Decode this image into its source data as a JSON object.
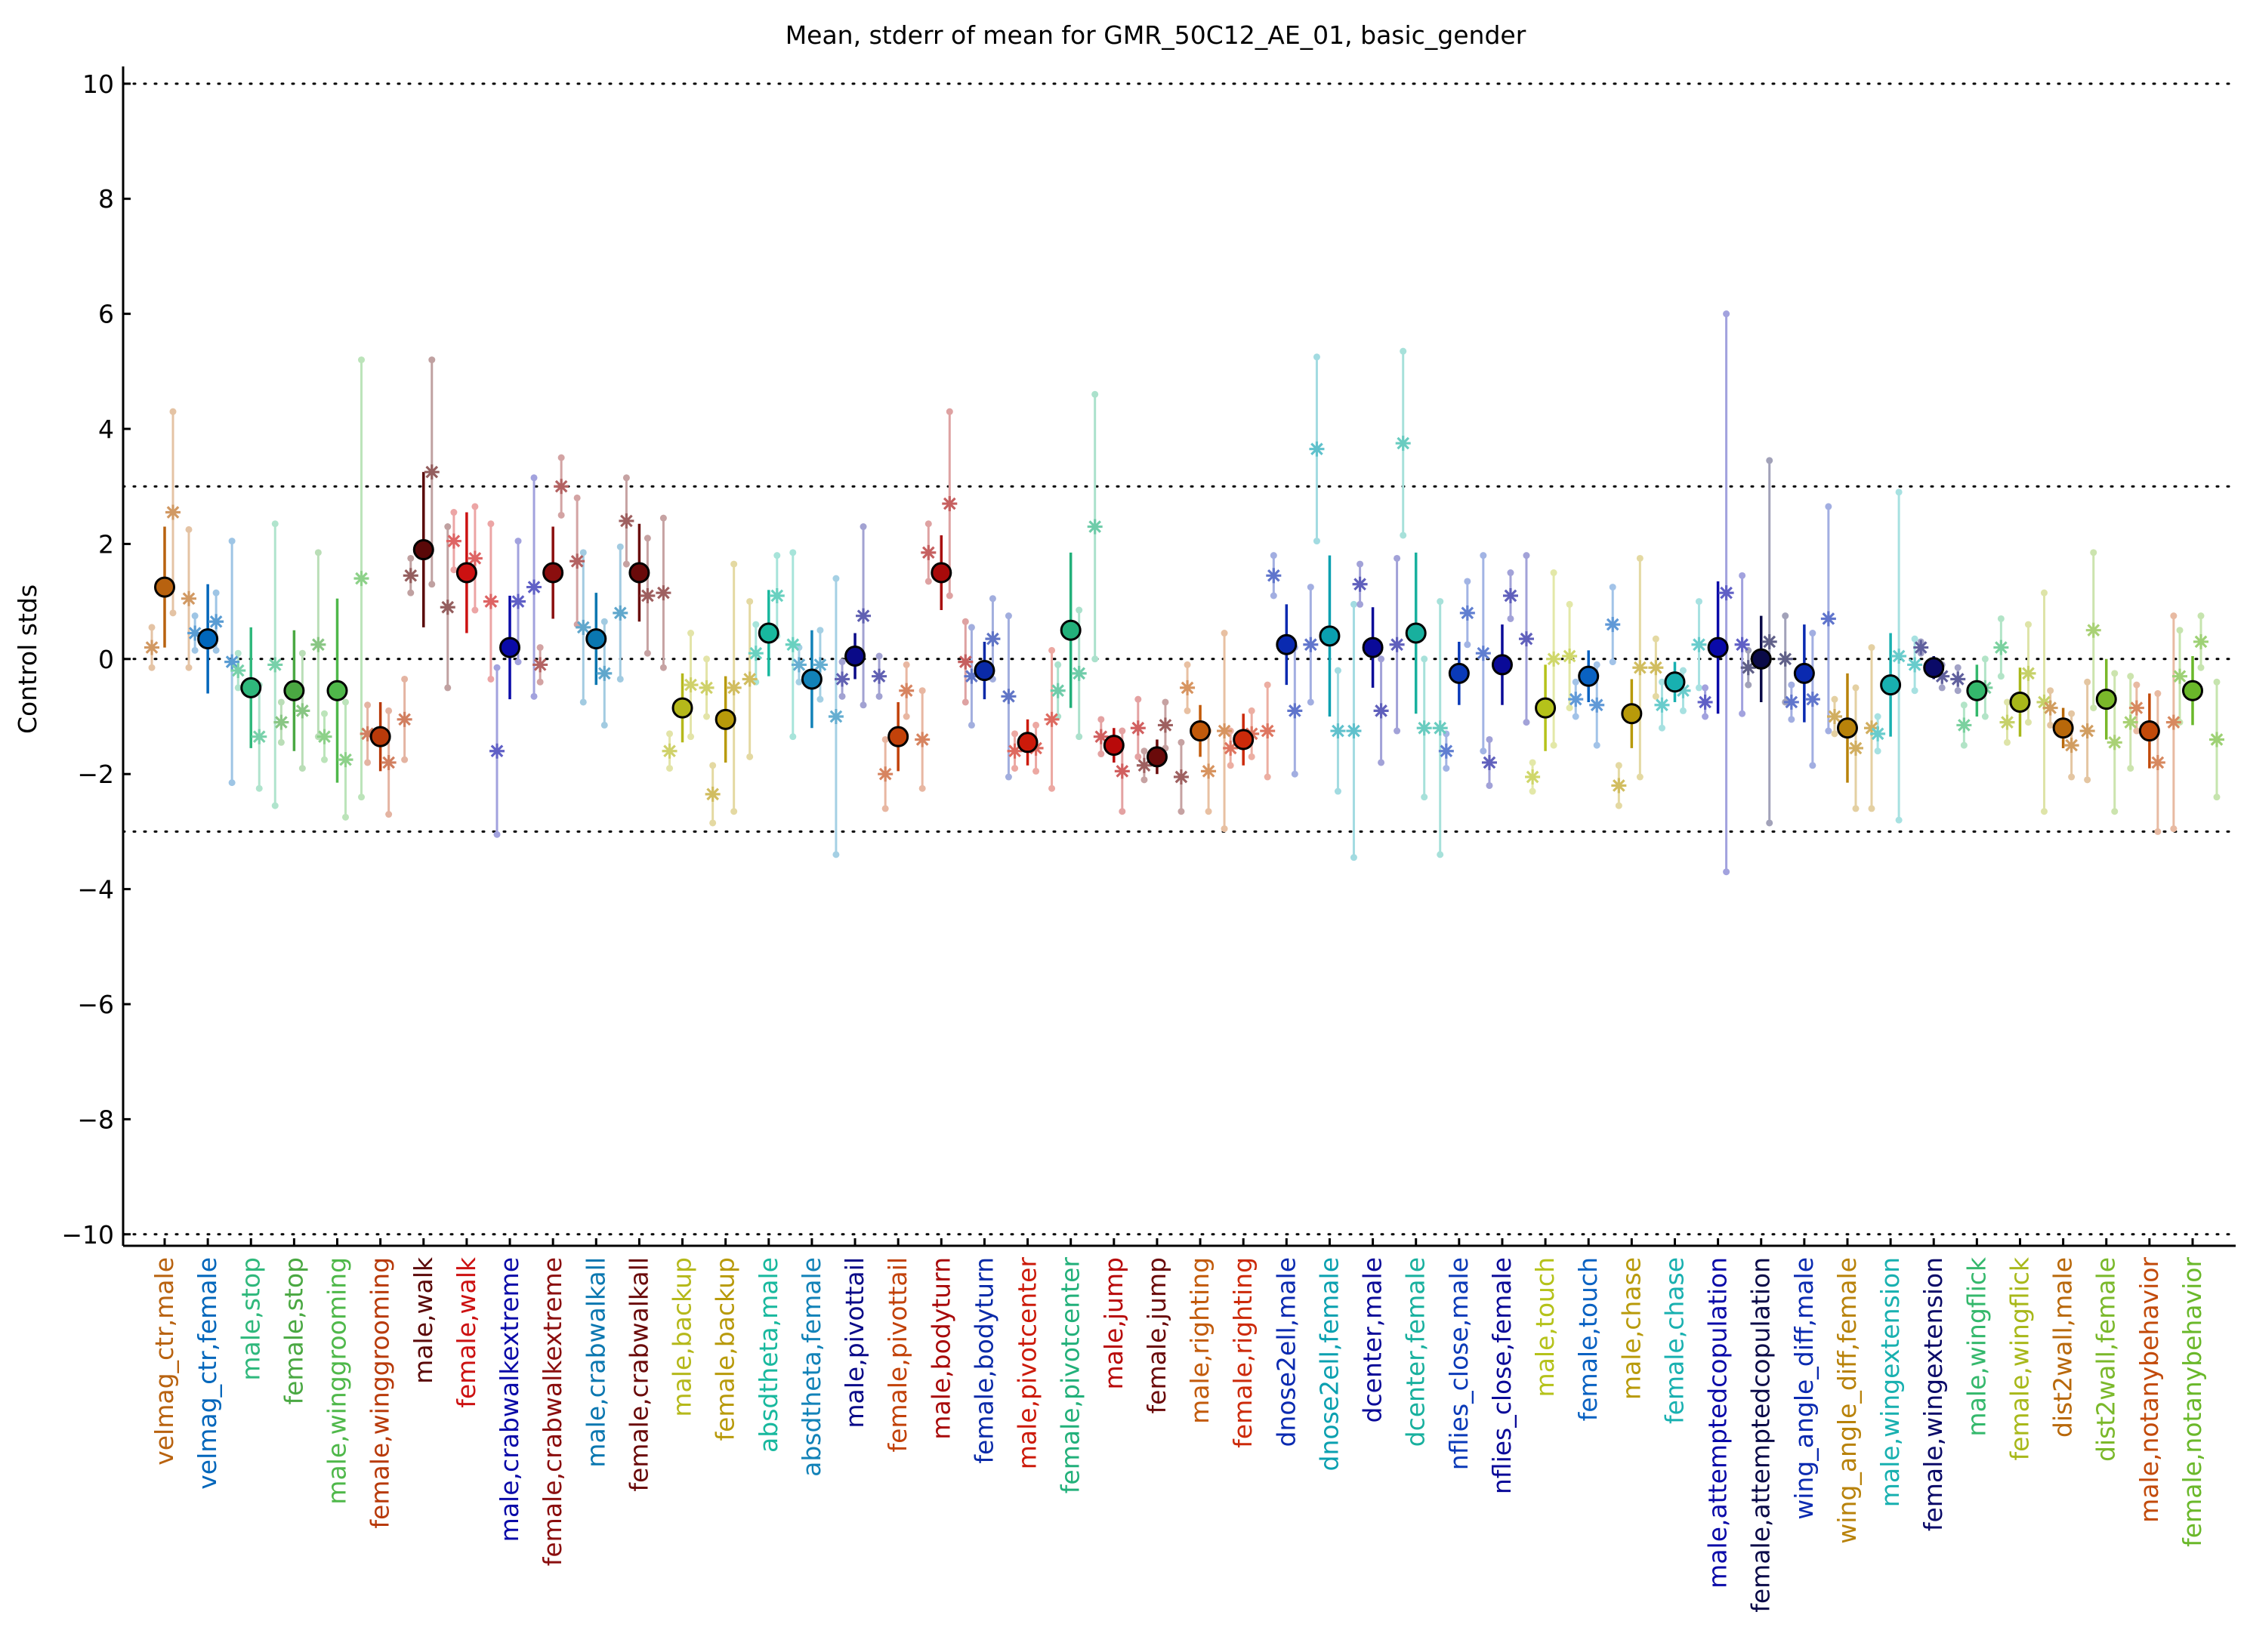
{
  "chart_data": {
    "type": "scatter",
    "title": "Mean, stderr of mean for GMR_50C12_AE_01, basic_gender",
    "ylabel": "Control stds",
    "xlabel": "",
    "ylim": [
      -10.2,
      10.3
    ],
    "yticks": [
      10,
      8,
      6,
      4,
      2,
      0,
      -2,
      -4,
      -6,
      -8,
      -10
    ],
    "ytick_labels": [
      "10",
      "8",
      "6",
      "4",
      "2",
      "0",
      "−2",
      "−4",
      "−6",
      "−8",
      "−10"
    ],
    "reference_lines": [
      10,
      3,
      0,
      -3,
      -10
    ],
    "reference_line_style": "dotted",
    "grid": false,
    "legend": "none",
    "categories": [
      {
        "label": "velmag_ctr,male",
        "color": "#b8620f",
        "mean": 1.25,
        "sem": 1.05,
        "ind": [
          0.2,
          2.55,
          1.05
        ],
        "ind_err": [
          0.35,
          1.75,
          1.2
        ]
      },
      {
        "label": "velmag_ctr,female",
        "color": "#0066bb",
        "mean": 0.35,
        "sem": 0.95,
        "ind": [
          0.45,
          0.65,
          -0.05
        ],
        "ind_err": [
          0.3,
          0.5,
          2.1
        ]
      },
      {
        "label": "male,stop",
        "color": "#2fb87c",
        "mean": -0.5,
        "sem": 1.05,
        "ind": [
          -0.2,
          -1.35,
          -0.1
        ],
        "ind_err": [
          0.3,
          0.9,
          2.45
        ]
      },
      {
        "label": "female,stop",
        "color": "#4aa842",
        "mean": -0.55,
        "sem": 1.05,
        "ind": [
          -1.1,
          -0.9,
          0.25
        ],
        "ind_err": [
          0.35,
          1.0,
          1.6
        ]
      },
      {
        "label": "male,winggrooming",
        "color": "#4fb84a",
        "mean": -0.55,
        "sem": 1.6,
        "ind": [
          -1.35,
          -1.75,
          1.4
        ],
        "ind_err": [
          0.4,
          1.0,
          3.8
        ]
      },
      {
        "label": "female,winggrooming",
        "color": "#b83a0a",
        "mean": -1.35,
        "sem": 0.6,
        "ind": [
          -1.3,
          -1.8,
          -1.05
        ],
        "ind_err": [
          0.5,
          0.9,
          0.7
        ]
      },
      {
        "label": "male,walk",
        "color": "#5a0808",
        "mean": 1.9,
        "sem": 1.35,
        "ind": [
          1.45,
          3.25,
          0.9
        ],
        "ind_err": [
          0.3,
          1.95,
          1.4
        ]
      },
      {
        "label": "female,walk",
        "color": "#cc1111",
        "mean": 1.5,
        "sem": 1.05,
        "ind": [
          2.05,
          1.75,
          1.0
        ],
        "ind_err": [
          0.5,
          0.9,
          1.35
        ]
      },
      {
        "label": "male,crabwalkextreme",
        "color": "#0a0aa8",
        "mean": 0.2,
        "sem": 0.9,
        "ind": [
          -1.6,
          1.0,
          1.25
        ],
        "ind_err": [
          1.45,
          1.05,
          1.9
        ]
      },
      {
        "label": "female,crabwalkextreme",
        "color": "#8a0e0e",
        "mean": 1.5,
        "sem": 0.8,
        "ind": [
          -0.1,
          3.0,
          1.7
        ],
        "ind_err": [
          0.3,
          0.5,
          1.1
        ]
      },
      {
        "label": "male,crabwalkall",
        "color": "#0a77b0",
        "mean": 0.35,
        "sem": 0.8,
        "ind": [
          0.55,
          -0.25,
          0.8
        ],
        "ind_err": [
          1.3,
          0.9,
          1.15
        ]
      },
      {
        "label": "female,crabwalkall",
        "color": "#6a0a0a",
        "mean": 1.5,
        "sem": 0.85,
        "ind": [
          2.4,
          1.1,
          1.15
        ],
        "ind_err": [
          0.75,
          1.0,
          1.3
        ]
      },
      {
        "label": "male,backup",
        "color": "#b5b81a",
        "mean": -0.85,
        "sem": 0.6,
        "ind": [
          -1.6,
          -0.45,
          -0.5
        ],
        "ind_err": [
          0.3,
          0.9,
          0.5
        ]
      },
      {
        "label": "female,backup",
        "color": "#b89a0a",
        "mean": -1.05,
        "sem": 0.75,
        "ind": [
          -2.35,
          -0.5,
          -0.35
        ],
        "ind_err": [
          0.5,
          2.15,
          1.35
        ]
      },
      {
        "label": "absdtheta,male",
        "color": "#18b89e",
        "mean": 0.45,
        "sem": 0.75,
        "ind": [
          0.1,
          1.1,
          0.25
        ],
        "ind_err": [
          0.5,
          0.7,
          1.6
        ]
      },
      {
        "label": "absdtheta,female",
        "color": "#1282b8",
        "mean": -0.35,
        "sem": 0.85,
        "ind": [
          -0.1,
          -0.1,
          -1.0
        ],
        "ind_err": [
          0.3,
          0.6,
          2.4
        ]
      },
      {
        "label": "male,pivottail",
        "color": "#0a0a88",
        "mean": 0.05,
        "sem": 0.4,
        "ind": [
          -0.35,
          0.75,
          -0.3
        ],
        "ind_err": [
          0.3,
          1.55,
          0.35
        ]
      },
      {
        "label": "female,pivottail",
        "color": "#c2420a",
        "mean": -1.35,
        "sem": 0.6,
        "ind": [
          -2.0,
          -0.55,
          -1.4
        ],
        "ind_err": [
          0.6,
          0.45,
          0.85
        ]
      },
      {
        "label": "male,bodyturn",
        "color": "#a80a0a",
        "mean": 1.5,
        "sem": 0.65,
        "ind": [
          1.85,
          2.7,
          -0.05
        ],
        "ind_err": [
          0.5,
          1.6,
          0.7
        ]
      },
      {
        "label": "female,bodyturn",
        "color": "#0a2aa8",
        "mean": -0.2,
        "sem": 0.5,
        "ind": [
          -0.3,
          0.35,
          -0.65
        ],
        "ind_err": [
          0.85,
          0.7,
          1.4
        ]
      },
      {
        "label": "male,pivotcenter",
        "color": "#cc1a0a",
        "mean": -1.45,
        "sem": 0.4,
        "ind": [
          -1.6,
          -1.55,
          -1.05
        ],
        "ind_err": [
          0.3,
          0.4,
          1.2
        ]
      },
      {
        "label": "female,pivotcenter",
        "color": "#22b07a",
        "mean": 0.5,
        "sem": 1.35,
        "ind": [
          -0.55,
          -0.25,
          2.3
        ],
        "ind_err": [
          0.45,
          1.1,
          2.3
        ]
      },
      {
        "label": "male,jump",
        "color": "#b80a0a",
        "mean": -1.5,
        "sem": 0.3,
        "ind": [
          -1.35,
          -1.95,
          -1.2
        ],
        "ind_err": [
          0.3,
          0.7,
          0.5
        ]
      },
      {
        "label": "female,jump",
        "color": "#6a0a0a",
        "mean": -1.7,
        "sem": 0.3,
        "ind": [
          -1.85,
          -1.15,
          -2.05
        ],
        "ind_err": [
          0.25,
          0.4,
          0.6
        ]
      },
      {
        "label": "male,righting",
        "color": "#c25a0a",
        "mean": -1.25,
        "sem": 0.45,
        "ind": [
          -0.5,
          -1.95,
          -1.25
        ],
        "ind_err": [
          0.4,
          0.7,
          1.7
        ]
      },
      {
        "label": "female,righting",
        "color": "#cc2a0a",
        "mean": -1.4,
        "sem": 0.45,
        "ind": [
          -1.55,
          -1.3,
          -1.25
        ],
        "ind_err": [
          0.3,
          0.4,
          0.8
        ]
      },
      {
        "label": "dnose2ell,male",
        "color": "#0a2ab0",
        "mean": 0.25,
        "sem": 0.7,
        "ind": [
          1.45,
          -0.9,
          0.25
        ],
        "ind_err": [
          0.35,
          1.1,
          1.0
        ]
      },
      {
        "label": "dnose2ell,female",
        "color": "#0aa0b0",
        "mean": 0.4,
        "sem": 1.4,
        "ind": [
          3.65,
          -1.25,
          -1.25
        ],
        "ind_err": [
          1.6,
          1.05,
          2.2
        ]
      },
      {
        "label": "dcenter,male",
        "color": "#0a0a98",
        "mean": 0.2,
        "sem": 0.7,
        "ind": [
          1.3,
          -0.9,
          0.25
        ],
        "ind_err": [
          0.35,
          0.9,
          1.5
        ]
      },
      {
        "label": "dcenter,female",
        "color": "#18b09e",
        "mean": 0.45,
        "sem": 1.4,
        "ind": [
          3.75,
          -1.2,
          -1.2
        ],
        "ind_err": [
          1.6,
          1.2,
          2.2
        ]
      },
      {
        "label": "nflies_close,male",
        "color": "#0a3ab8",
        "mean": -0.25,
        "sem": 0.55,
        "ind": [
          -1.6,
          0.8,
          0.1
        ],
        "ind_err": [
          0.3,
          0.55,
          1.7
        ]
      },
      {
        "label": "nflies_close,female",
        "color": "#0a0a98",
        "mean": -0.1,
        "sem": 0.7,
        "ind": [
          -1.8,
          1.1,
          0.35
        ],
        "ind_err": [
          0.4,
          0.4,
          1.45
        ]
      },
      {
        "label": "male,touch",
        "color": "#b5c21a",
        "mean": -0.85,
        "sem": 0.75,
        "ind": [
          -2.05,
          0.0,
          0.05
        ],
        "ind_err": [
          0.25,
          1.5,
          0.9
        ]
      },
      {
        "label": "female,touch",
        "color": "#0a62c2",
        "mean": -0.3,
        "sem": 0.45,
        "ind": [
          -0.7,
          -0.8,
          0.6
        ],
        "ind_err": [
          0.3,
          0.7,
          0.65
        ]
      },
      {
        "label": "male,chase",
        "color": "#b89a0a",
        "mean": -0.95,
        "sem": 0.6,
        "ind": [
          -2.2,
          -0.15,
          -0.15
        ],
        "ind_err": [
          0.35,
          1.9,
          0.5
        ]
      },
      {
        "label": "female,chase",
        "color": "#18b0b0",
        "mean": -0.4,
        "sem": 0.35,
        "ind": [
          -0.8,
          -0.55,
          0.25
        ],
        "ind_err": [
          0.4,
          0.35,
          0.75
        ]
      },
      {
        "label": "male,attemptedcopulation",
        "color": "#0a0aa8",
        "mean": 0.2,
        "sem": 1.15,
        "ind": [
          -0.75,
          1.15,
          0.25
        ],
        "ind_err": [
          0.25,
          4.85,
          1.2
        ]
      },
      {
        "label": "female,attemptedcopulation",
        "color": "#0a0a48",
        "mean": 0.0,
        "sem": 0.75,
        "ind": [
          -0.15,
          0.3,
          0.0
        ],
        "ind_err": [
          0.3,
          3.15,
          0.75
        ]
      },
      {
        "label": "wing_angle_diff,male",
        "color": "#0a2ab0",
        "mean": -0.25,
        "sem": 0.85,
        "ind": [
          -0.75,
          -0.7,
          0.7
        ],
        "ind_err": [
          0.3,
          1.15,
          1.95
        ]
      },
      {
        "label": "wing_angle_diff,female",
        "color": "#b8820a",
        "mean": -1.2,
        "sem": 0.95,
        "ind": [
          -1.0,
          -1.55,
          -1.2
        ],
        "ind_err": [
          0.3,
          1.05,
          1.4
        ]
      },
      {
        "label": "male,wingextension",
        "color": "#18b0b0",
        "mean": -0.45,
        "sem": 0.9,
        "ind": [
          -1.3,
          0.05,
          -0.1
        ],
        "ind_err": [
          0.3,
          2.85,
          0.45
        ]
      },
      {
        "label": "female,wingextension",
        "color": "#0a0a68",
        "mean": -0.15,
        "sem": 0.2,
        "ind": [
          0.2,
          -0.3,
          -0.35
        ],
        "ind_err": [
          0.1,
          0.2,
          0.2
        ]
      },
      {
        "label": "male,wingflick",
        "color": "#34b86c",
        "mean": -0.55,
        "sem": 0.45,
        "ind": [
          -1.15,
          -0.5,
          0.2
        ],
        "ind_err": [
          0.35,
          0.5,
          0.5
        ]
      },
      {
        "label": "female,wingflick",
        "color": "#a8b81a",
        "mean": -0.75,
        "sem": 0.6,
        "ind": [
          -1.1,
          -0.25,
          -0.75
        ],
        "ind_err": [
          0.35,
          0.85,
          1.9
        ]
      },
      {
        "label": "dist2wall,male",
        "color": "#b8680a",
        "mean": -1.2,
        "sem": 0.35,
        "ind": [
          -0.85,
          -1.5,
          -1.25
        ],
        "ind_err": [
          0.3,
          0.55,
          0.85
        ]
      },
      {
        "label": "dist2wall,female",
        "color": "#7ab82a",
        "mean": -0.7,
        "sem": 0.7,
        "ind": [
          0.5,
          -1.45,
          -1.1
        ],
        "ind_err": [
          1.35,
          1.2,
          0.8
        ]
      },
      {
        "label": "male,notanybehavior",
        "color": "#c24a0a",
        "mean": -1.25,
        "sem": 0.65,
        "ind": [
          -0.85,
          -1.8,
          -1.1
        ],
        "ind_err": [
          0.4,
          1.2,
          1.85
        ]
      },
      {
        "label": "female,notanybehavior",
        "color": "#6ab82a",
        "mean": -0.55,
        "sem": 0.6,
        "ind": [
          -0.3,
          0.3,
          -1.4
        ],
        "ind_err": [
          0.8,
          0.45,
          1.0
        ]
      }
    ]
  }
}
